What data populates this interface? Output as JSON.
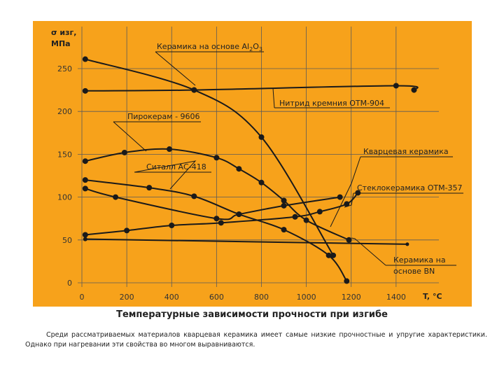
{
  "chart_data": {
    "type": "line",
    "title": "",
    "ylabel_lines": [
      "σ изг,",
      "МПа"
    ],
    "xlabel": "T, °C",
    "xlim": [
      0,
      1600
    ],
    "ylim": [
      0,
      300
    ],
    "x_ticks": [
      0,
      200,
      400,
      600,
      800,
      1000,
      1200,
      1400
    ],
    "y_ticks": [
      0,
      50,
      100,
      150,
      200,
      250
    ],
    "grid": true,
    "series": [
      {
        "name": "Керамика на основе Al2O3",
        "label_text": "Керамика на основе Al",
        "label_sub1": "2",
        "label_mid": "O",
        "label_sub2": "3",
        "x": [
          15,
          500,
          800,
          1120
        ],
        "y": [
          261,
          225,
          170,
          32
        ]
      },
      {
        "name": "Нитрид кремния ОТМ-904",
        "label_text": "Нитрид кремния ОТМ-904",
        "x": [
          15,
          500,
          1400,
          1480
        ],
        "y": [
          224,
          225,
          230,
          225
        ]
      },
      {
        "name": "Пирокерам - 9606",
        "label_text": "Пирокерам - 9606",
        "x": [
          15,
          190,
          390,
          600,
          700,
          800,
          900,
          1000,
          1190
        ],
        "y": [
          142,
          152,
          156,
          146,
          133,
          117,
          96,
          73,
          50
        ]
      },
      {
        "name": "Кварцевая керамика",
        "label_text": "Кварцевая керамика",
        "x": [
          15,
          300,
          500,
          700,
          900,
          1100,
          1180
        ],
        "y": [
          120,
          111,
          101,
          80,
          62,
          32,
          2
        ]
      },
      {
        "name": "Ситалл АС-418",
        "label_text": "Ситалл АС-418",
        "x": [
          15,
          150,
          600,
          700,
          900,
          1150
        ],
        "y": [
          110,
          100,
          75,
          80,
          90,
          100
        ]
      },
      {
        "name": "Стеклокерамика ОТМ-357",
        "label_text": "Стеклокерамика ОТМ-357",
        "x": [
          15,
          200,
          400,
          620,
          950,
          1060,
          1180,
          1230
        ],
        "y": [
          56,
          61,
          67,
          70,
          77,
          83,
          92,
          105
        ]
      },
      {
        "name": "Керамика на основе BN",
        "label_lines": [
          "Керамика на",
          "основе BN"
        ],
        "x": [
          15,
          1450
        ],
        "y": [
          51,
          45
        ]
      }
    ]
  },
  "caption": {
    "title": "Температурные зависимости прочности при изгибе",
    "text": "Среди рассматриваемых материалов кварцевая керамика имеет самые низкие прочностные и упругие характеристики. Однако при нагревании эти свойства во многом выравниваются."
  },
  "colors": {
    "panel": "#f7a21b",
    "line": "#1a1a1a",
    "grid": "#5a5a5a"
  }
}
